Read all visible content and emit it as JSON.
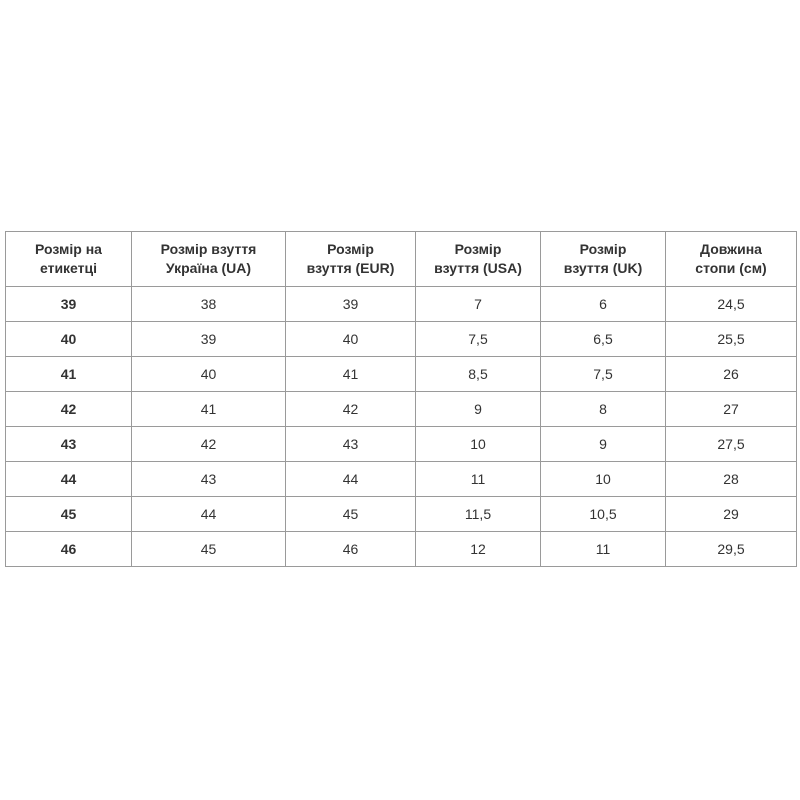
{
  "table": {
    "headers": [
      "Розмір на етикетці",
      "Розмір взуття Україна (UA)",
      "Розмір взуття (EUR)",
      "Розмір взуття (USA)",
      "Розмір взуття (UK)",
      "Довжина стопи (см)"
    ],
    "header_lines": [
      [
        "Розмір на",
        "етикетці"
      ],
      [
        "Розмір взуття",
        "Україна (UA)"
      ],
      [
        "Розмір",
        "взуття (EUR)"
      ],
      [
        "Розмір",
        "взуття (USA)"
      ],
      [
        "Розмір",
        "взуття (UK)"
      ],
      [
        "Довжина",
        "стопи (см)"
      ]
    ],
    "rows": [
      [
        "39",
        "38",
        "39",
        "7",
        "6",
        "24,5"
      ],
      [
        "40",
        "39",
        "40",
        "7,5",
        "6,5",
        "25,5"
      ],
      [
        "41",
        "40",
        "41",
        "8,5",
        "7,5",
        "26"
      ],
      [
        "42",
        "41",
        "42",
        "9",
        "8",
        "27"
      ],
      [
        "43",
        "42",
        "43",
        "10",
        "9",
        "27,5"
      ],
      [
        "44",
        "43",
        "44",
        "11",
        "10",
        "28"
      ],
      [
        "45",
        "44",
        "45",
        "11,5",
        "10,5",
        "29"
      ],
      [
        "46",
        "45",
        "46",
        "12",
        "11",
        "29,5"
      ]
    ]
  }
}
